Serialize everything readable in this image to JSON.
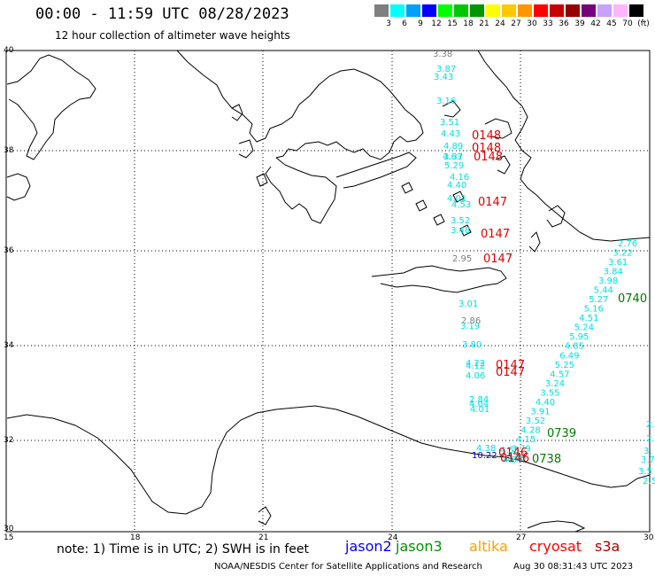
{
  "header": {
    "title": "00:00 - 11:59 UTC 08/28/2023",
    "subtitle": "12 hour collection of altimeter wave heights"
  },
  "color_scale": {
    "ticks": [
      "3",
      "6",
      "9",
      "12",
      "15",
      "18",
      "21",
      "24",
      "27",
      "30",
      "33",
      "36",
      "39",
      "42",
      "45",
      "70",
      "(ft)"
    ],
    "colors": [
      "#7f7f7f",
      "#00ffff",
      "#00a0ff",
      "#0000ff",
      "#00ff00",
      "#00c800",
      "#009600",
      "#ffff00",
      "#ffc800",
      "#ff9600",
      "#ff0000",
      "#c80000",
      "#960000",
      "#780078",
      "#c8a0ff",
      "#ffb4ff",
      "#000000"
    ]
  },
  "axes": {
    "lon_labels": [
      "15",
      "18",
      "21",
      "24",
      "27",
      "30"
    ],
    "lat_labels": [
      "40",
      "38",
      "36",
      "34",
      "32",
      "30"
    ]
  },
  "observations": {
    "cryosat_track": [
      "3.38",
      "3.87",
      "3.43",
      "3.16",
      "3.51",
      "4.43",
      "4.89",
      "4.63",
      "3.37",
      "5.29",
      "4.16",
      "4.40",
      "4.01",
      "4.53",
      "3.52",
      "3.48",
      "2.95",
      "3.01",
      "2.86",
      "3.19",
      "3.80",
      "4.22",
      "4.12",
      "4.06",
      "2.84",
      "4.04",
      "4.01",
      "4.38",
      "10.22",
      "4.55",
      "4.87"
    ],
    "diagonal_track": [
      "2.76",
      "3.22",
      "3.61",
      "3.84",
      "3.98",
      "5.44",
      "5.27",
      "5.16",
      "4.51",
      "5.24",
      "5.95",
      "4.85",
      "6.49",
      "5.25",
      "4.57",
      "3.24",
      "3.55",
      "4.40",
      "3.91",
      "3.52",
      "4.28",
      "4.15",
      "3.79",
      "2.86"
    ],
    "right_edge": [
      "2.",
      "2.",
      "3.",
      "3.7",
      "3.5",
      "2.5"
    ],
    "time_labels_red": [
      "0148",
      "0148",
      "0148",
      "0147",
      "0147",
      "0147",
      "0147",
      "0147",
      "0146",
      "0146"
    ],
    "time_labels_green": [
      "0740",
      "0739",
      "0738"
    ]
  },
  "footer": {
    "note": "note: 1) Time is in UTC; 2) SWH is in feet",
    "missions": [
      "jason2",
      "jason3",
      "altika",
      "cryosat",
      "s3a"
    ],
    "mission_colors": [
      "#0000ff",
      "#009600",
      "#ffa000",
      "#ff0000",
      "#b40000"
    ],
    "credit": "NOAA/NESDIS Center for Satellite Applications and Research",
    "timestamp": "Aug 30 08:31:43 UTC 2023"
  }
}
